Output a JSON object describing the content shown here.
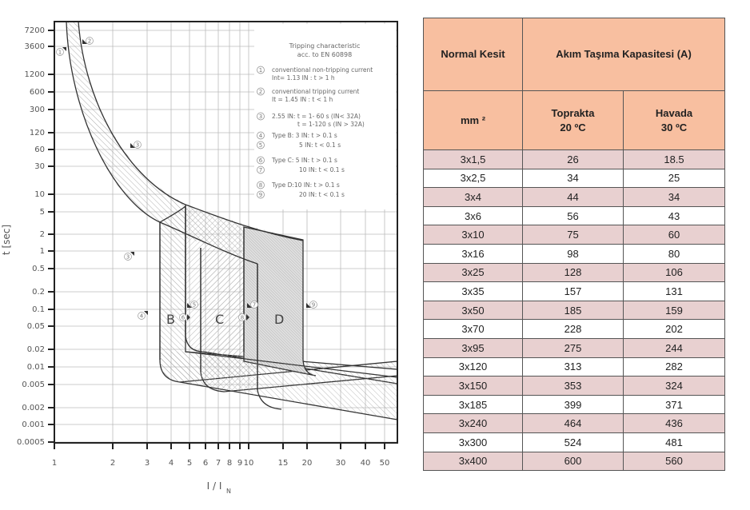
{
  "chart_data": {
    "type": "line",
    "title": "Tripping characteristic acc. to EN 60898",
    "xlabel": "I / I_N",
    "ylabel": "t [sec]",
    "xscale": "log",
    "yscale": "log",
    "xlim": [
      1,
      55
    ],
    "ylim": [
      0.0005,
      10000
    ],
    "grid": true,
    "x_ticks": [
      "1",
      "2",
      "3",
      "4",
      "5",
      "6",
      "7",
      "8",
      "9",
      "10",
      "15",
      "20",
      "30",
      "40",
      "50"
    ],
    "y_ticks": [
      "7200",
      "3600",
      "1200",
      "600",
      "300",
      "120",
      "60",
      "30",
      "10",
      "5",
      "2",
      "1",
      "0.5",
      "0.2",
      "0.1",
      "0.05",
      "0.02",
      "0.01",
      "0.005",
      "0.002",
      "0.001",
      "0.0005"
    ],
    "zones": [
      {
        "name": "B",
        "magnetic_min_x": 3,
        "magnetic_max_x": 5
      },
      {
        "name": "C",
        "magnetic_min_x": 5,
        "magnetic_max_x": 10
      },
      {
        "name": "D",
        "magnetic_min_x": 10,
        "magnetic_max_x": 20
      }
    ],
    "thermal_band": {
      "lower_curve": [
        [
          1.13,
          7200
        ],
        [
          1.3,
          1200
        ],
        [
          1.6,
          300
        ],
        [
          2.0,
          60
        ],
        [
          3.0,
          10
        ],
        [
          4.0,
          4
        ],
        [
          6,
          1.5
        ],
        [
          10,
          0.6
        ]
      ],
      "upper_curve": [
        [
          1.45,
          7200
        ],
        [
          1.7,
          1200
        ],
        [
          2.1,
          300
        ],
        [
          2.8,
          60
        ],
        [
          4.0,
          12
        ],
        [
          6,
          4
        ],
        [
          10,
          2
        ],
        [
          20,
          1.2
        ]
      ]
    },
    "legend": {
      "title_line1": "Tripping characteristic",
      "title_line2": "acc. to EN 60898",
      "items": [
        {
          "num": "1",
          "lines": [
            "conventional non-tripping current",
            "I_nt = 1.13 I_N : t > 1 h"
          ]
        },
        {
          "num": "2",
          "lines": [
            "conventional tripping current",
            "I_t = 1.45 I_N : t < 1 h"
          ]
        },
        {
          "num": "3",
          "lines": [
            "2.55 I_N: t = 1- 60 s (I_N < 32A)",
            "t = 1-120 s (I_N > 32A)"
          ]
        },
        {
          "num": "4",
          "lines": [
            "Type B: 3 I_N : t > 0.1 s"
          ]
        },
        {
          "num": "5",
          "lines": [
            "5 I_N : t < 0.1 s"
          ]
        },
        {
          "num": "6",
          "lines": [
            "Type C: 5 I_N : t > 0.1 s"
          ]
        },
        {
          "num": "7",
          "lines": [
            "10 I_N : t < 0.1 s"
          ]
        },
        {
          "num": "8",
          "lines": [
            "Type D:10 I_N : t > 0.1 s"
          ]
        },
        {
          "num": "9",
          "lines": [
            "20 I_N : t < 0.1 s"
          ]
        }
      ]
    }
  },
  "chart": {
    "ylabel": "t [sec]",
    "xlabel_main": "I / I",
    "xlabel_sub": "N",
    "zone_labels": {
      "b": "B",
      "c": "C",
      "d": "D"
    },
    "legend_title_1": "Tripping characteristic",
    "legend_title_2": "acc. to EN 60898",
    "legend": [
      {
        "num": "1",
        "l1": "conventional non-tripping current",
        "l2": "Int= 1.13 IN : t > 1 h"
      },
      {
        "num": "2",
        "l1": "conventional tripping current",
        "l2": "It = 1.45 IN : t < 1 h"
      },
      {
        "num": "3",
        "l1": "2.55 IN: t = 1- 60 s (IN< 32A)",
        "l2": "t = 1-120 s (IN > 32A)"
      },
      {
        "num": "4",
        "l1": "Type B: 3 IN: t > 0.1 s"
      },
      {
        "num": "5",
        "l1": "5 IN: t < 0.1 s"
      },
      {
        "num": "6",
        "l1": "Type C: 5 IN: t > 0.1 s"
      },
      {
        "num": "7",
        "l1": "10 IN: t < 0.1 s"
      },
      {
        "num": "8",
        "l1": "Type D:10 IN: t > 0.1 s"
      },
      {
        "num": "9",
        "l1": "20 IN: t < 0.1 s"
      }
    ],
    "yticks": [
      {
        "label": "7200",
        "y": 38
      },
      {
        "label": "3600",
        "y": 58
      },
      {
        "label": "1200",
        "y": 93
      },
      {
        "label": "600",
        "y": 115
      },
      {
        "label": "300",
        "y": 137
      },
      {
        "label": "120",
        "y": 166
      },
      {
        "label": "60",
        "y": 187
      },
      {
        "label": "30",
        "y": 208
      },
      {
        "label": "10",
        "y": 243
      },
      {
        "label": "5",
        "y": 265
      },
      {
        "label": "2",
        "y": 293
      },
      {
        "label": "1",
        "y": 314
      },
      {
        "label": "0.5",
        "y": 336
      },
      {
        "label": "0.2",
        "y": 365
      },
      {
        "label": "0.1",
        "y": 387
      },
      {
        "label": "0.05",
        "y": 408
      },
      {
        "label": "0.02",
        "y": 437
      },
      {
        "label": "0.01",
        "y": 459
      },
      {
        "label": "0.005",
        "y": 481
      },
      {
        "label": "0.002",
        "y": 510
      },
      {
        "label": "0.001",
        "y": 531
      },
      {
        "label": "0.0005",
        "y": 553
      }
    ],
    "xticks": [
      {
        "label": "1",
        "x": 68
      },
      {
        "label": "2",
        "x": 141
      },
      {
        "label": "3",
        "x": 184
      },
      {
        "label": "4",
        "x": 214
      },
      {
        "label": "5",
        "x": 237
      },
      {
        "label": "6",
        "x": 257
      },
      {
        "label": "7",
        "x": 273
      },
      {
        "label": "8",
        "x": 287
      },
      {
        "label": "9",
        "x": 300
      },
      {
        "label": "10",
        "x": 311
      },
      {
        "label": "15",
        "x": 354
      },
      {
        "label": "20",
        "x": 384
      },
      {
        "label": "30",
        "x": 426
      },
      {
        "label": "40",
        "x": 457
      },
      {
        "label": "50",
        "x": 481
      }
    ]
  },
  "table": {
    "header": {
      "col1": "Normal Kesit",
      "group": "Akım Taşıma Kapasitesi (A)",
      "unit": "mm ²",
      "sub1_line1": "Toprakta",
      "sub1_line2": "20 ºC",
      "sub2_line1": "Havada",
      "sub2_line2": "30 ºC"
    },
    "colors": {
      "header_bg": "#f8bfa0",
      "odd_row_bg": "#e8d0d0",
      "even_row_bg": "#ffffff"
    },
    "rows": [
      {
        "kesit": "3x1,5",
        "toprakta": "26",
        "havada": "18.5"
      },
      {
        "kesit": "3x2,5",
        "toprakta": "34",
        "havada": "25"
      },
      {
        "kesit": "3x4",
        "toprakta": "44",
        "havada": "34"
      },
      {
        "kesit": "3x6",
        "toprakta": "56",
        "havada": "43"
      },
      {
        "kesit": "3x10",
        "toprakta": "75",
        "havada": "60"
      },
      {
        "kesit": "3x16",
        "toprakta": "98",
        "havada": "80"
      },
      {
        "kesit": "3x25",
        "toprakta": "128",
        "havada": "106"
      },
      {
        "kesit": "3x35",
        "toprakta": "157",
        "havada": "131"
      },
      {
        "kesit": "3x50",
        "toprakta": "185",
        "havada": "159"
      },
      {
        "kesit": "3x70",
        "toprakta": "228",
        "havada": "202"
      },
      {
        "kesit": "3x95",
        "toprakta": "275",
        "havada": "244"
      },
      {
        "kesit": "3x120",
        "toprakta": "313",
        "havada": "282"
      },
      {
        "kesit": "3x150",
        "toprakta": "353",
        "havada": "324"
      },
      {
        "kesit": "3x185",
        "toprakta": "399",
        "havada": "371"
      },
      {
        "kesit": "3x240",
        "toprakta": "464",
        "havada": "436"
      },
      {
        "kesit": "3x300",
        "toprakta": "524",
        "havada": "481"
      },
      {
        "kesit": "3x400",
        "toprakta": "600",
        "havada": "560"
      }
    ]
  }
}
